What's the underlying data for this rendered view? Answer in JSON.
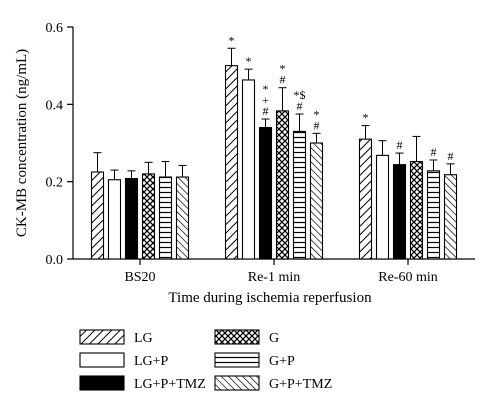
{
  "chart_data": {
    "type": "bar",
    "xlabel": "Time during ischemia reperfusion",
    "ylabel": "CK-MB concentration (ng/mL)",
    "ylim": [
      0,
      0.6
    ],
    "yticks": [
      "0.0",
      "0.2",
      "0.4",
      "0.6"
    ],
    "categories": [
      "BS20",
      "Re-1 min",
      "Re-60 min"
    ],
    "legend_position": "bottom",
    "series": [
      {
        "name": "LG",
        "pattern": "diag-right",
        "values": [
          0.225,
          0.5,
          0.31
        ],
        "errors": [
          0.05,
          0.045,
          0.035
        ],
        "marks": [
          "",
          "*",
          "*"
        ]
      },
      {
        "name": "LG+P",
        "pattern": "white",
        "values": [
          0.205,
          0.463,
          0.268
        ],
        "errors": [
          0.025,
          0.028,
          0.038
        ],
        "marks": [
          "",
          "*",
          ""
        ]
      },
      {
        "name": "LG+P+TMZ",
        "pattern": "black",
        "values": [
          0.208,
          0.34,
          0.244
        ],
        "errors": [
          0.02,
          0.022,
          0.03
        ],
        "marks": [
          "",
          "*\n+\n#",
          "#"
        ]
      },
      {
        "name": "G",
        "pattern": "crosshatch",
        "values": [
          0.22,
          0.383,
          0.252
        ],
        "errors": [
          0.03,
          0.06,
          0.065
        ],
        "marks": [
          "",
          "*\n#",
          ""
        ]
      },
      {
        "name": "G+P",
        "pattern": "horizontal",
        "values": [
          0.212,
          0.33,
          0.228
        ],
        "errors": [
          0.04,
          0.045,
          0.028
        ],
        "marks": [
          "",
          "*$\n#",
          "#"
        ]
      },
      {
        "name": "G+P+TMZ",
        "pattern": "diag-left",
        "values": [
          0.212,
          0.3,
          0.218
        ],
        "errors": [
          0.03,
          0.025,
          0.028
        ],
        "marks": [
          "",
          "*\n#",
          "#"
        ]
      }
    ]
  }
}
